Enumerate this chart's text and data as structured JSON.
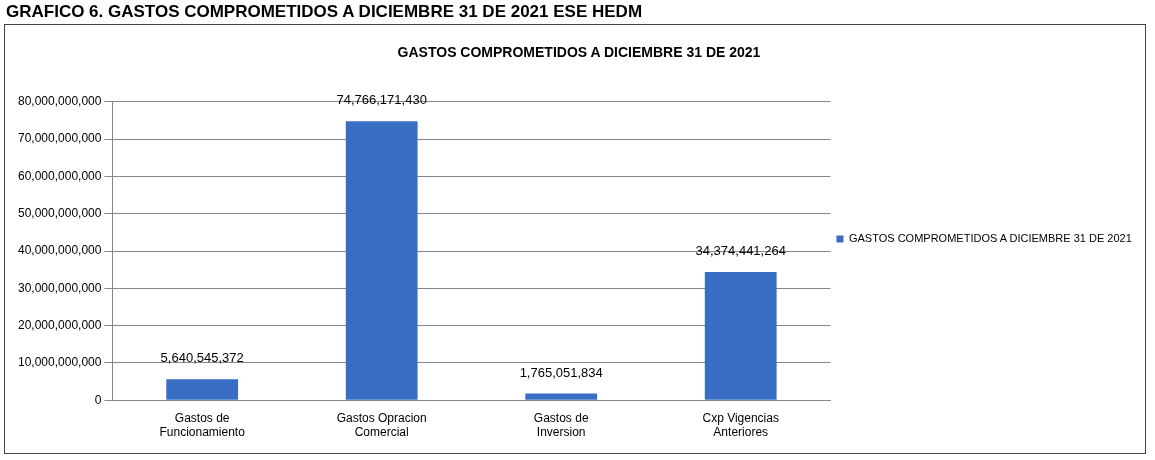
{
  "chart_data": {
    "type": "bar",
    "title": "GRAFICO 6. GASTOS COMPROMETIDOS A DICIEMBRE 31 DE 2021 ESE HEDM",
    "subtitle": "GASTOS COMPROMETIDOS A DICIEMBRE 31 DE 2021",
    "categories": [
      "Gastos de Funcionamiento",
      "Gastos Opracion Comercial",
      "Gastos de Inversion",
      "Cxp Vigencias Anteriores"
    ],
    "series": [
      {
        "name": "GASTOS COMPROMETIDOS A DICIEMBRE 31 DE 2021",
        "color": "#3a6ec4",
        "values": [
          5640545372,
          74766171430,
          1765051834,
          34374441264
        ],
        "value_labels": [
          "5,640,545,372",
          "74,766,171,430",
          "1,765,051,834",
          "34,374,441,264"
        ]
      }
    ],
    "ylim": [
      0,
      80000000000
    ],
    "yticks": [
      0,
      {
        "value": 10000000000,
        "label": "10,000,000,000"
      },
      {
        "value": 20000000000,
        "label": "20,000,000,000"
      },
      {
        "value": 30000000000,
        "label": "30,000,000,000"
      },
      {
        "value": 40000000000,
        "label": "40,000,000,000"
      },
      {
        "value": 50000000000,
        "label": "50,000,000,000"
      },
      {
        "value": 60000000000,
        "label": "60,000,000,000"
      },
      {
        "value": 70000000000,
        "label": "70,000,000,000"
      },
      {
        "value": 80000000000,
        "label": "80,000,000,000"
      }
    ],
    "grid": "y",
    "legend": "right"
  }
}
